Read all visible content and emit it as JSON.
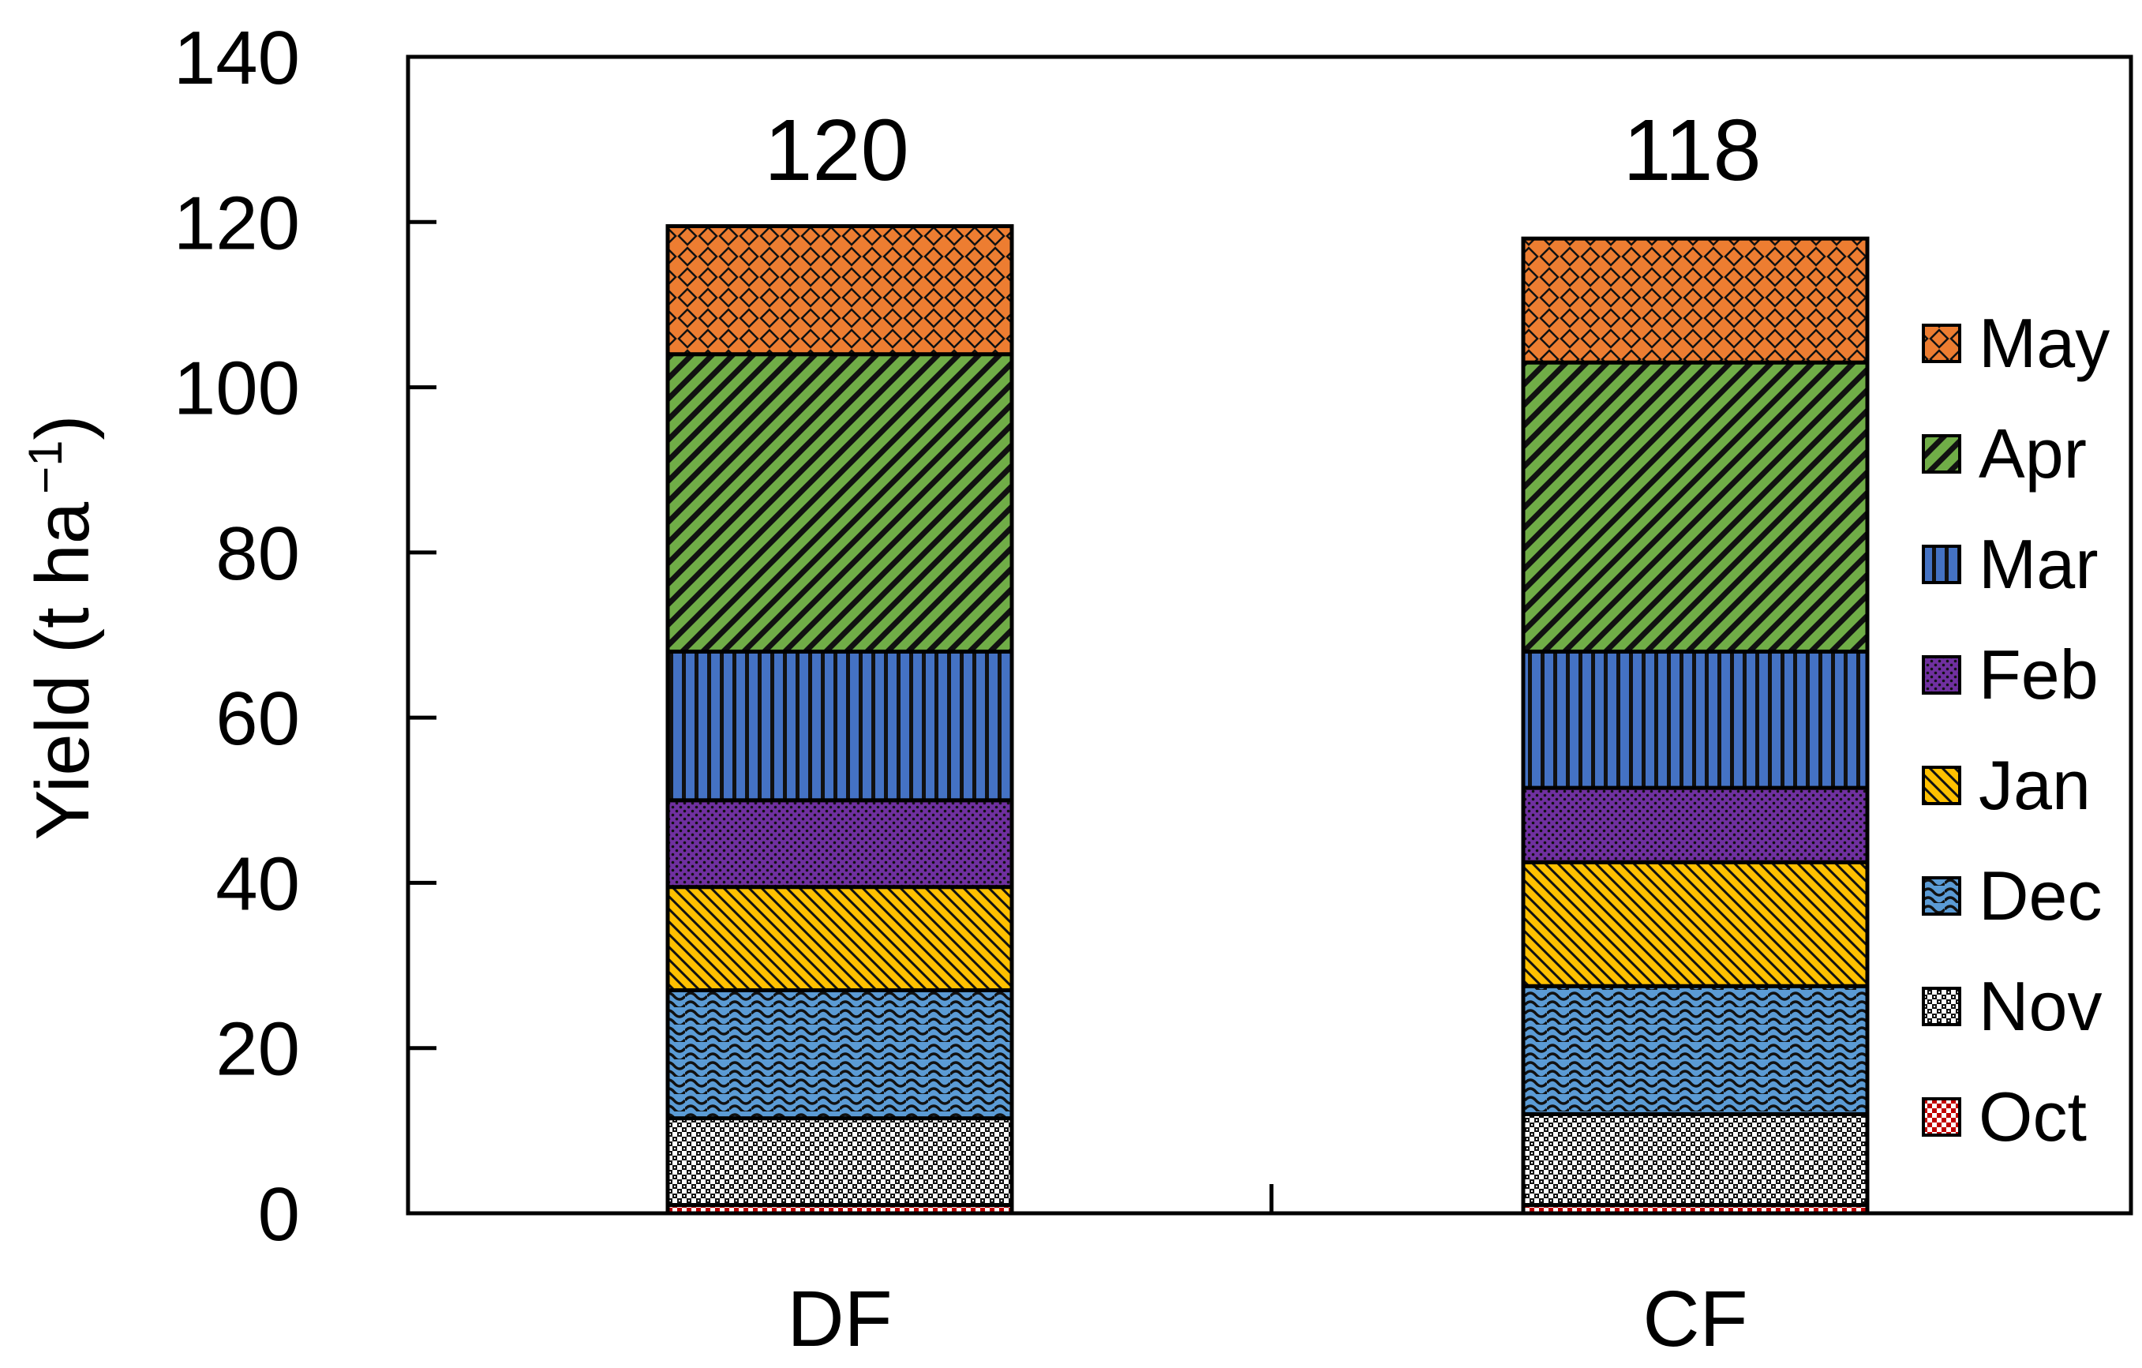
{
  "chart_data": {
    "type": "bar",
    "stacked": true,
    "categories": [
      "DF",
      "CF"
    ],
    "totals_labels": [
      "120",
      "118"
    ],
    "ylabel": "Yield (t ha",
    "ylabel_sup": "−1",
    "ylabel_close": ")",
    "ylim": [
      0,
      140
    ],
    "yticks": [
      "0",
      "20",
      "40",
      "60",
      "80",
      "100",
      "120",
      "140"
    ],
    "grid": false,
    "legend_position": "right",
    "legend_order": [
      "May",
      "Apr",
      "Mar",
      "Feb",
      "Jan",
      "Dec",
      "Nov",
      "Oct"
    ],
    "series": [
      {
        "name": "Oct",
        "values": [
          1.0,
          1.0
        ],
        "color": "#c00000",
        "pattern": "checker-red"
      },
      {
        "name": "Nov",
        "values": [
          10.5,
          11.0
        ],
        "color": "#ffffff",
        "pattern": "grid-dots"
      },
      {
        "name": "Dec",
        "values": [
          15.5,
          15.5
        ],
        "color": "#5b9bd5",
        "pattern": "waves"
      },
      {
        "name": "Jan",
        "values": [
          12.5,
          15.0
        ],
        "color": "#ffc000",
        "pattern": "diag-down"
      },
      {
        "name": "Feb",
        "values": [
          10.5,
          9.0
        ],
        "color": "#7030a0",
        "pattern": "dots"
      },
      {
        "name": "Mar",
        "values": [
          18.0,
          16.5
        ],
        "color": "#4472c4",
        "pattern": "vertical"
      },
      {
        "name": "Apr",
        "values": [
          36.0,
          35.0
        ],
        "color": "#70ad47",
        "pattern": "diag-up"
      },
      {
        "name": "May",
        "values": [
          15.5,
          15.0
        ],
        "color": "#ed7d31",
        "pattern": "diamond"
      }
    ]
  }
}
